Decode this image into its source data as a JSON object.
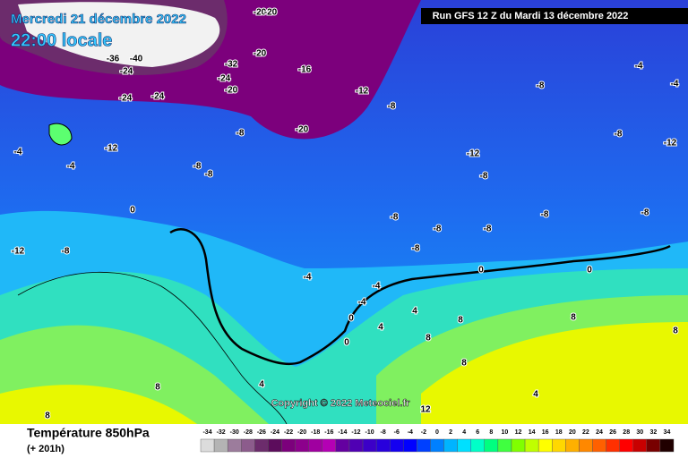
{
  "header": {
    "date": "Mercredi 21 décembre 2022",
    "time": "22:00 locale",
    "run": "Run GFS 12 Z du Mardi 13 décembre 2022"
  },
  "copyright": "Copyright © 2022 Meteociel.fr",
  "legend": {
    "title": "Température 850hPa",
    "step": "(+ 201h)",
    "ticks": [
      -34,
      -32,
      -30,
      -28,
      -26,
      -24,
      -22,
      -20,
      -18,
      -16,
      -14,
      -12,
      -10,
      -8,
      -6,
      -4,
      -2,
      0,
      2,
      4,
      6,
      8,
      10,
      12,
      14,
      16,
      18,
      20,
      22,
      24,
      26,
      28,
      30,
      32,
      34
    ],
    "colors": [
      "#dcdcdc",
      "#b4b4b4",
      "#9c7c9c",
      "#8c5c8c",
      "#6c2c6c",
      "#5c0c5c",
      "#7c007c",
      "#8c008c",
      "#a000a0",
      "#b400b4",
      "#6400a0",
      "#5000b4",
      "#3c00c8",
      "#2800dc",
      "#1400f0",
      "#0000ff",
      "#0040ff",
      "#0080ff",
      "#00b4ff",
      "#00e0ff",
      "#00ffc8",
      "#00ff80",
      "#40ff40",
      "#80ff00",
      "#c0ff00",
      "#ffff00",
      "#ffd800",
      "#ffb000",
      "#ff8800",
      "#ff6000",
      "#ff3000",
      "#ff0000",
      "#c80000",
      "#780000",
      "#200000"
    ]
  },
  "contour_labels": [
    -20,
    -20,
    -36,
    -40,
    -32,
    -24,
    -20,
    -16,
    -24,
    -20,
    -24,
    -24,
    -12,
    -8,
    -4,
    -8,
    -4,
    -8,
    -12,
    -20,
    -8,
    -12,
    -4,
    -4,
    -12,
    -8,
    -8,
    -8,
    -8,
    -8,
    -8,
    -8,
    -8,
    -8,
    -12,
    -8,
    0,
    0,
    0,
    -4,
    -4,
    -4,
    0,
    0,
    4,
    4,
    8,
    8,
    8,
    4,
    8,
    12,
    4,
    8,
    8,
    8
  ]
}
